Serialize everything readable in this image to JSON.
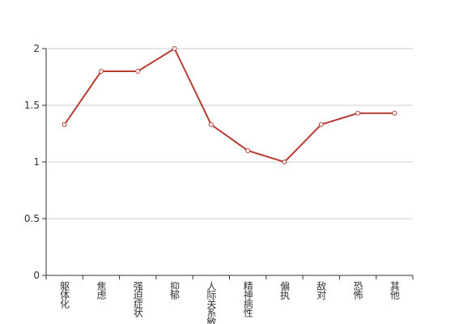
{
  "chart_data": {
    "type": "line",
    "categories": [
      "躯体化",
      "焦虑",
      "强迫症状",
      "抑郁",
      "人际关系敏感",
      "精神病性",
      "偏执",
      "敌对",
      "恐怖",
      "其他"
    ],
    "series": [
      {
        "name": null,
        "color": "#b83b34",
        "values": [
          1.33,
          1.8,
          1.8,
          2,
          1.33,
          1.1,
          1,
          1.33,
          1.43,
          1.43
        ]
      }
    ],
    "ylim": [
      0,
      2
    ],
    "yticks": [
      0,
      0.5,
      1,
      1.5,
      2
    ],
    "grid": true
  }
}
